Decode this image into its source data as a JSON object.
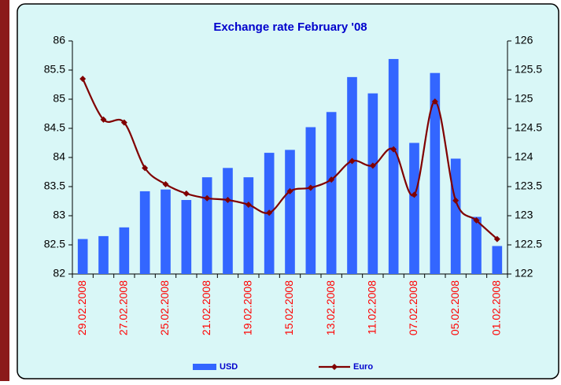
{
  "chart_data": {
    "type": "bar_line",
    "title": "Exchange rate February '08",
    "categories": [
      "29.02.2008",
      null,
      "27.02.2008",
      null,
      "25.02.2008",
      null,
      "21.02.2008",
      null,
      "19.02.2008",
      null,
      "15.02.2008",
      null,
      "13.02.2008",
      null,
      "11.02.2008",
      null,
      "07.02.2008",
      null,
      "05.02.2008",
      null,
      "01.02.2008"
    ],
    "series": [
      {
        "name": "USD",
        "type": "bar",
        "axis": "y",
        "color": "#3366ff",
        "values": [
          82.6,
          82.65,
          82.8,
          83.42,
          83.45,
          83.27,
          83.66,
          83.82,
          83.66,
          84.08,
          84.13,
          84.52,
          84.78,
          85.38,
          85.1,
          85.69,
          84.25,
          85.45,
          83.98,
          82.98,
          82.48
        ]
      },
      {
        "name": "Euro",
        "type": "line",
        "axis": "y2",
        "color": "#800000",
        "values": [
          125.35,
          124.65,
          124.6,
          123.82,
          123.54,
          123.38,
          123.3,
          123.27,
          123.19,
          123.05,
          123.42,
          123.48,
          123.62,
          123.94,
          123.86,
          124.14,
          123.36,
          124.96,
          123.26,
          122.92,
          122.6
        ]
      }
    ],
    "ylim": [
      82,
      86
    ],
    "yticks": [
      82,
      82.5,
      83,
      83.5,
      84,
      84.5,
      85,
      85.5,
      86
    ],
    "y2lim": [
      122,
      126
    ],
    "y2ticks": [
      122,
      122.5,
      123,
      123.5,
      124,
      124.5,
      125,
      125.5,
      126
    ],
    "legend": "bottom"
  }
}
